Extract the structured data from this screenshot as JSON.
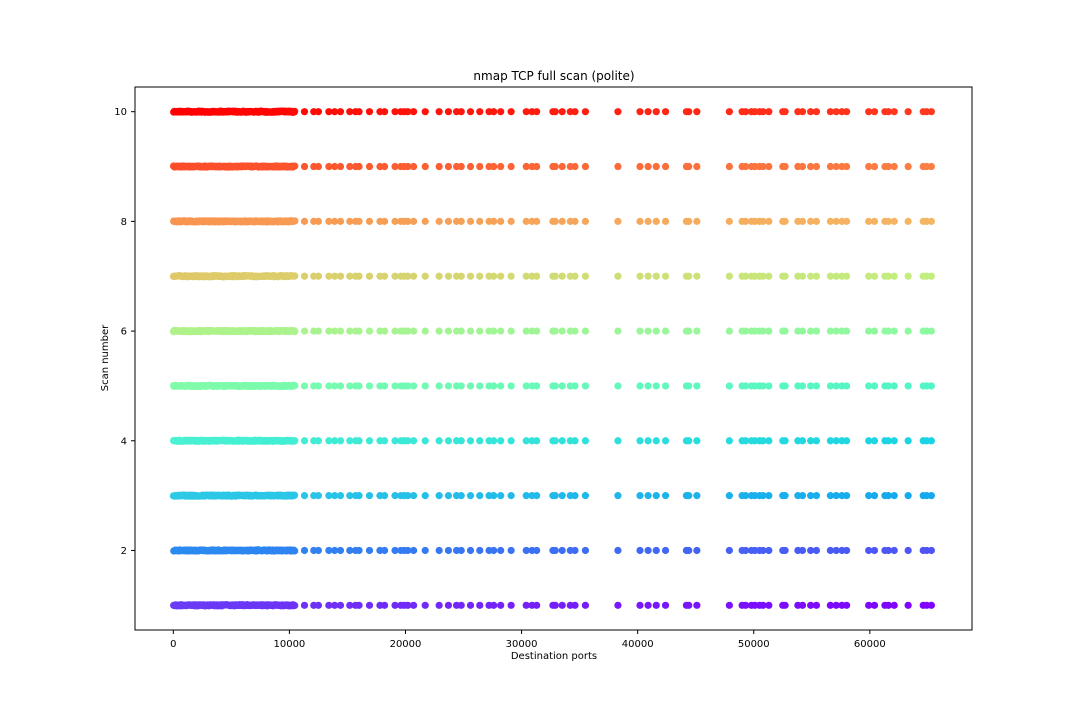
{
  "chart_data": {
    "type": "scatter",
    "title": "nmap TCP full scan (polite)",
    "xlabel": "Destination ports",
    "ylabel": "Scan number",
    "xlim": [
      -3300,
      68800
    ],
    "ylim": [
      0.55,
      10.45
    ],
    "xticks": [
      0,
      10000,
      20000,
      30000,
      40000,
      50000,
      60000
    ],
    "xtick_labels": [
      "0",
      "10000",
      "20000",
      "30000",
      "40000",
      "50000",
      "60000"
    ],
    "yticks": [
      2,
      4,
      6,
      8,
      10
    ],
    "ytick_labels": [
      "2",
      "4",
      "6",
      "8",
      "10"
    ],
    "grid": false,
    "legend": "none",
    "colormap": "rainbow",
    "series": [
      {
        "scan": 1,
        "dense_range": [
          0,
          10500
        ],
        "color_low": "#6a3df4",
        "color_high": "#8000ff"
      },
      {
        "scan": 2,
        "dense_range": [
          0,
          10500
        ],
        "color_low": "#2a8cf0",
        "color_high": "#4f52f5"
      },
      {
        "scan": 3,
        "dense_range": [
          0,
          10500
        ],
        "color_low": "#2ecae6",
        "color_high": "#14a8ed"
      },
      {
        "scan": 4,
        "dense_range": [
          0,
          10500
        ],
        "color_low": "#4af2d2",
        "color_high": "#1ad3e3"
      },
      {
        "scan": 5,
        "dense_range": [
          0,
          10500
        ],
        "color_low": "#80fca9",
        "color_high": "#50f5c8"
      },
      {
        "scan": 6,
        "dense_range": [
          0,
          10500
        ],
        "color_low": "#b0f28a",
        "color_high": "#8cf9a1"
      },
      {
        "scan": 7,
        "dense_range": [
          0,
          10500
        ],
        "color_low": "#e0c868",
        "color_high": "#c2ee80"
      },
      {
        "scan": 8,
        "dense_range": [
          0,
          10500
        ],
        "color_low": "#f79550",
        "color_high": "#f5b664"
      },
      {
        "scan": 9,
        "dense_range": [
          0,
          10500
        ],
        "color_low": "#fc4d2a",
        "color_high": "#fb7f44"
      },
      {
        "scan": 10,
        "dense_range": [
          0,
          10500
        ],
        "color_low": "#ff0000",
        "color_high": "#ff3a20"
      }
    ],
    "sparse_ports": [
      11300,
      12100,
      12500,
      13400,
      13900,
      14400,
      15200,
      15700,
      16000,
      16900,
      17800,
      18200,
      19100,
      19600,
      19900,
      20200,
      20700,
      21700,
      22900,
      23700,
      24400,
      24800,
      25600,
      26400,
      27200,
      27600,
      28200,
      29100,
      30400,
      30900,
      31300,
      32700,
      32900,
      33500,
      34200,
      34600,
      35500,
      38300,
      40200,
      40900,
      41600,
      42400,
      44200,
      44400,
      45100,
      47900,
      49000,
      49300,
      49800,
      50100,
      50500,
      50800,
      51300,
      52500,
      52700,
      53800,
      54200,
      54900,
      55400,
      56600,
      57100,
      57600,
      58000,
      59900,
      60400,
      61300,
      61600,
      62100,
      63300,
      64600,
      64900,
      65300
    ]
  }
}
